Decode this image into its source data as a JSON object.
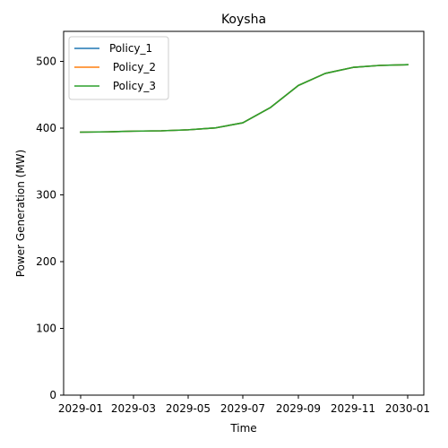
{
  "chart_data": {
    "type": "line",
    "title": "Koysha",
    "xlabel": "Time",
    "ylabel": "Power Generation (MW)",
    "grid": false,
    "legend_position": "top-left",
    "x_type": "date",
    "xlim": [
      "2028-12-13",
      "2030-01-19"
    ],
    "ylim": [
      0,
      545
    ],
    "x_ticks": [
      "2029-01",
      "2029-03",
      "2029-05",
      "2029-07",
      "2029-09",
      "2029-11",
      "2030-01"
    ],
    "x_tick_dates": [
      "2029-01-01",
      "2029-03-01",
      "2029-05-01",
      "2029-07-01",
      "2029-09-01",
      "2029-11-01",
      "2030-01-01"
    ],
    "y_ticks": [
      0,
      100,
      200,
      300,
      400,
      500
    ],
    "x": [
      "2029-01-01",
      "2029-02-01",
      "2029-03-01",
      "2029-04-01",
      "2029-05-01",
      "2029-06-01",
      "2029-07-01",
      "2029-08-01",
      "2029-09-01",
      "2029-10-01",
      "2029-11-01",
      "2029-12-01",
      "2030-01-01"
    ],
    "series": [
      {
        "name": "Policy_1",
        "color": "#1f77b4",
        "values": [
          394,
          394.5,
          395.5,
          396,
          397.5,
          400.5,
          408,
          431,
          464,
          482,
          491,
          494,
          495
        ]
      },
      {
        "name": " Policy_2",
        "color": "#ff7f0e",
        "values": [
          394,
          394.5,
          395.5,
          396,
          397.5,
          400.5,
          408,
          431,
          464,
          482,
          491,
          494,
          495
        ]
      },
      {
        "name": " Policy_3",
        "color": "#2ca02c",
        "values": [
          394,
          394.5,
          395.5,
          396,
          397.5,
          400.5,
          408,
          431,
          464,
          482,
          491,
          494,
          495
        ]
      }
    ]
  }
}
